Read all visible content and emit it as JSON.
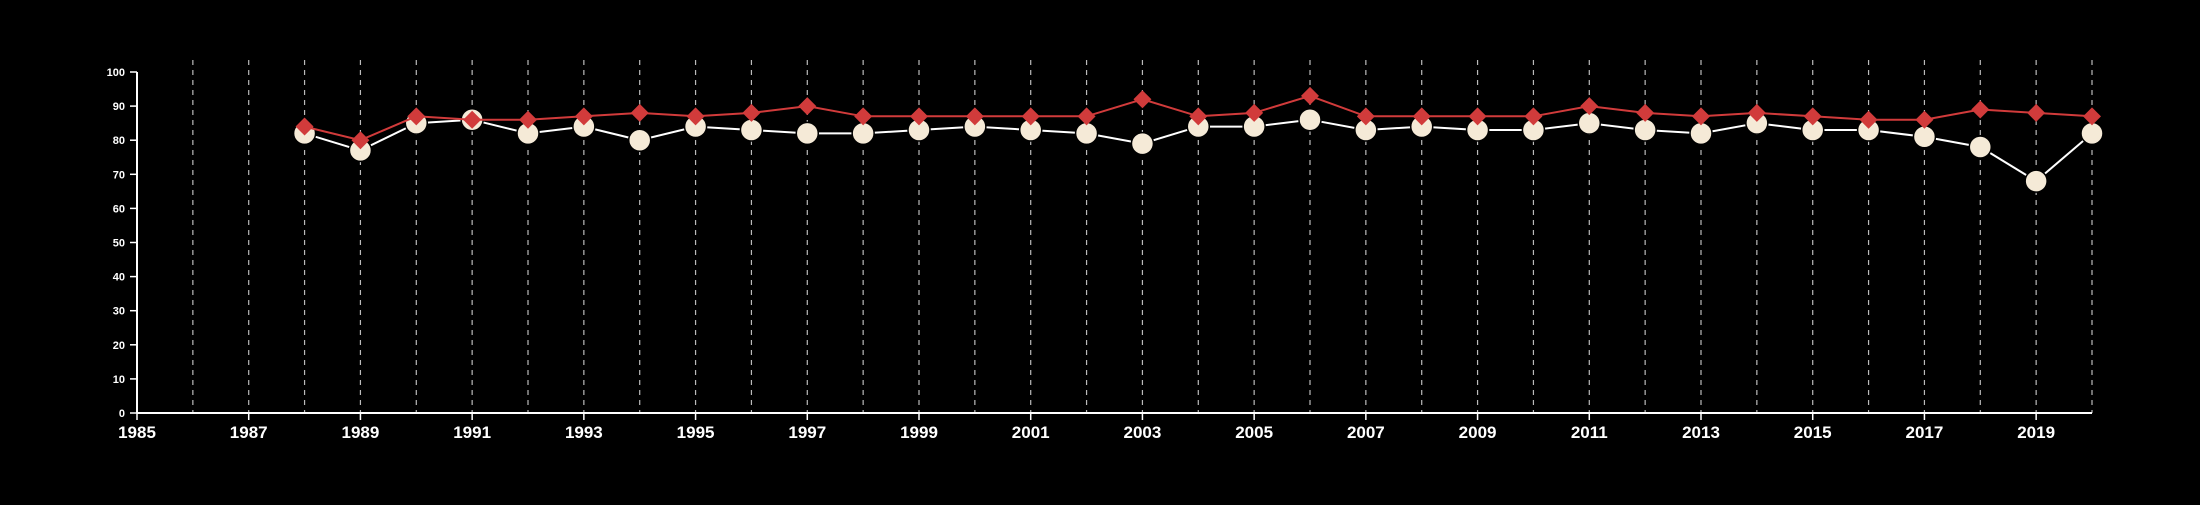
{
  "chart_data": {
    "type": "line",
    "title": "",
    "xlabel": "",
    "ylabel": "",
    "xlim": [
      1985,
      2020
    ],
    "ylim": [
      0,
      100
    ],
    "x_ticks": [
      1985,
      1987,
      1989,
      1991,
      1993,
      1995,
      1997,
      1999,
      2001,
      2003,
      2005,
      2007,
      2009,
      2011,
      2013,
      2015,
      2017,
      2019
    ],
    "y_ticks": [
      0,
      10,
      20,
      30,
      40,
      50,
      60,
      70,
      80,
      90,
      100
    ],
    "vertical_gridlines_years": [
      1986,
      1987,
      1988,
      1989,
      1990,
      1991,
      1992,
      1993,
      1994,
      1995,
      1996,
      1997,
      1998,
      1999,
      2000,
      2001,
      2002,
      2003,
      2004,
      2005,
      2006,
      2007,
      2008,
      2009,
      2010,
      2011,
      2012,
      2013,
      2014,
      2015,
      2016,
      2017,
      2018,
      2019,
      2020
    ],
    "grid": "vertical-dashed",
    "legend": "none",
    "x": [
      1988,
      1989,
      1990,
      1991,
      1992,
      1993,
      1994,
      1995,
      1996,
      1997,
      1998,
      1999,
      2000,
      2001,
      2002,
      2003,
      2004,
      2005,
      2006,
      2007,
      2008,
      2009,
      2010,
      2011,
      2012,
      2013,
      2014,
      2015,
      2016,
      2017,
      2018,
      2019,
      2020
    ],
    "series": [
      {
        "marker": "diamond",
        "color": "#d13b3b",
        "values": [
          84,
          80,
          87,
          86,
          86,
          87,
          88,
          87,
          88,
          90,
          87,
          87,
          87,
          87,
          87,
          92,
          87,
          88,
          93,
          87,
          87,
          87,
          87,
          90,
          88,
          87,
          88,
          87,
          86,
          86,
          89,
          88,
          87
        ]
      },
      {
        "marker": "circle",
        "color": "#f5ead7",
        "values": [
          82,
          77,
          85,
          86,
          82,
          84,
          80,
          84,
          83,
          82,
          82,
          83,
          84,
          83,
          82,
          79,
          84,
          84,
          86,
          83,
          84,
          83,
          83,
          85,
          83,
          82,
          85,
          83,
          83,
          81,
          78,
          68,
          82
        ]
      }
    ]
  },
  "colors": {
    "background": "#000000",
    "axis": "#ffffff",
    "grid": "#bbbbbb",
    "line_circle_series": "#ffffff"
  }
}
